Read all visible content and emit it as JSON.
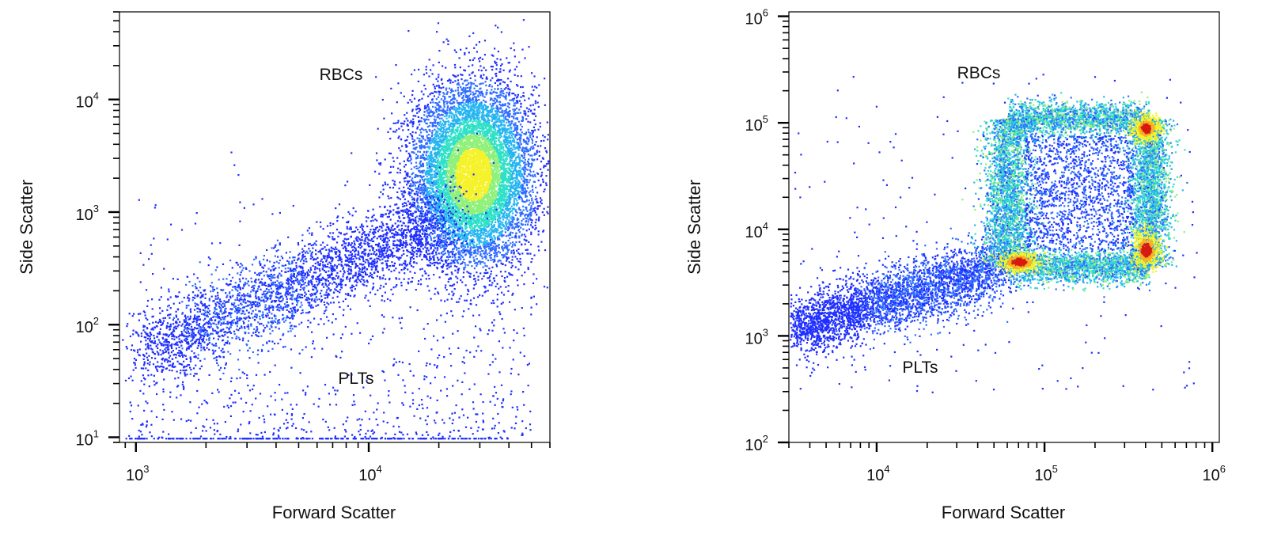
{
  "colors": {
    "background": "#ffffff",
    "axis": "#000000",
    "density_low": "#1f2fff",
    "density_mid": "#24d6d6",
    "density_high": "#f5f22a",
    "density_max": "#d61a10"
  },
  "chart_data": [
    {
      "type": "scatter",
      "subtype": "density-dot-plot",
      "xlabel": "Forward Scatter",
      "ylabel": "Side Scatter",
      "xscale": "log",
      "yscale": "log",
      "xlim": [
        850,
        60000
      ],
      "ylim": [
        9,
        60000
      ],
      "x_ticks": [
        {
          "base": "10",
          "exp": "3",
          "value": 1000
        },
        {
          "base": "10",
          "exp": "4",
          "value": 10000
        }
      ],
      "y_ticks": [
        {
          "base": "10",
          "exp": "1",
          "value": 10
        },
        {
          "base": "10",
          "exp": "2",
          "value": 100
        },
        {
          "base": "10",
          "exp": "3",
          "value": 1000
        },
        {
          "base": "10",
          "exp": "4",
          "value": 10000
        }
      ],
      "annotations": [
        {
          "text": "RBCs",
          "x": 5500,
          "y": 22000
        },
        {
          "text": "PLTs",
          "x": 6500,
          "y": 40
        }
      ],
      "populations": [
        {
          "label": "RBCs",
          "center": [
            28000,
            2200
          ],
          "spread": [
            0.13,
            0.4
          ],
          "density": "high"
        },
        {
          "label": "PLTs",
          "center": [
            4000,
            140
          ],
          "spread": [
            0.25,
            0.28
          ],
          "density": "low"
        }
      ]
    },
    {
      "type": "scatter",
      "subtype": "density-dot-plot",
      "xlabel": "Forward Scatter",
      "ylabel": "Side Scatter",
      "xscale": "log",
      "yscale": "log",
      "xlim": [
        3000,
        1100000
      ],
      "ylim": [
        100,
        1100000
      ],
      "x_ticks": [
        {
          "base": "10",
          "exp": "4",
          "value": 10000
        },
        {
          "base": "10",
          "exp": "5",
          "value": 100000
        },
        {
          "base": "10",
          "exp": "6",
          "value": 1000000
        }
      ],
      "y_ticks": [
        {
          "base": "10",
          "exp": "2",
          "value": 100
        },
        {
          "base": "10",
          "exp": "3",
          "value": 1000
        },
        {
          "base": "10",
          "exp": "4",
          "value": 10000
        },
        {
          "base": "10",
          "exp": "5",
          "value": 100000
        },
        {
          "base": "10",
          "exp": "6",
          "value": 1000000
        }
      ],
      "annotations": [
        {
          "text": "RBCs",
          "x": 30000,
          "y": 170000
        },
        {
          "text": "PLTs",
          "x": 15000,
          "y": 500
        }
      ],
      "populations": [
        {
          "label": "RBCs",
          "center": [
            170000,
            25000
          ],
          "spread": [
            0.45,
            0.6
          ],
          "density": "high"
        },
        {
          "label": "PLTs",
          "center": [
            15000,
            2000
          ],
          "spread": [
            0.35,
            0.25
          ],
          "density": "low"
        }
      ]
    }
  ]
}
